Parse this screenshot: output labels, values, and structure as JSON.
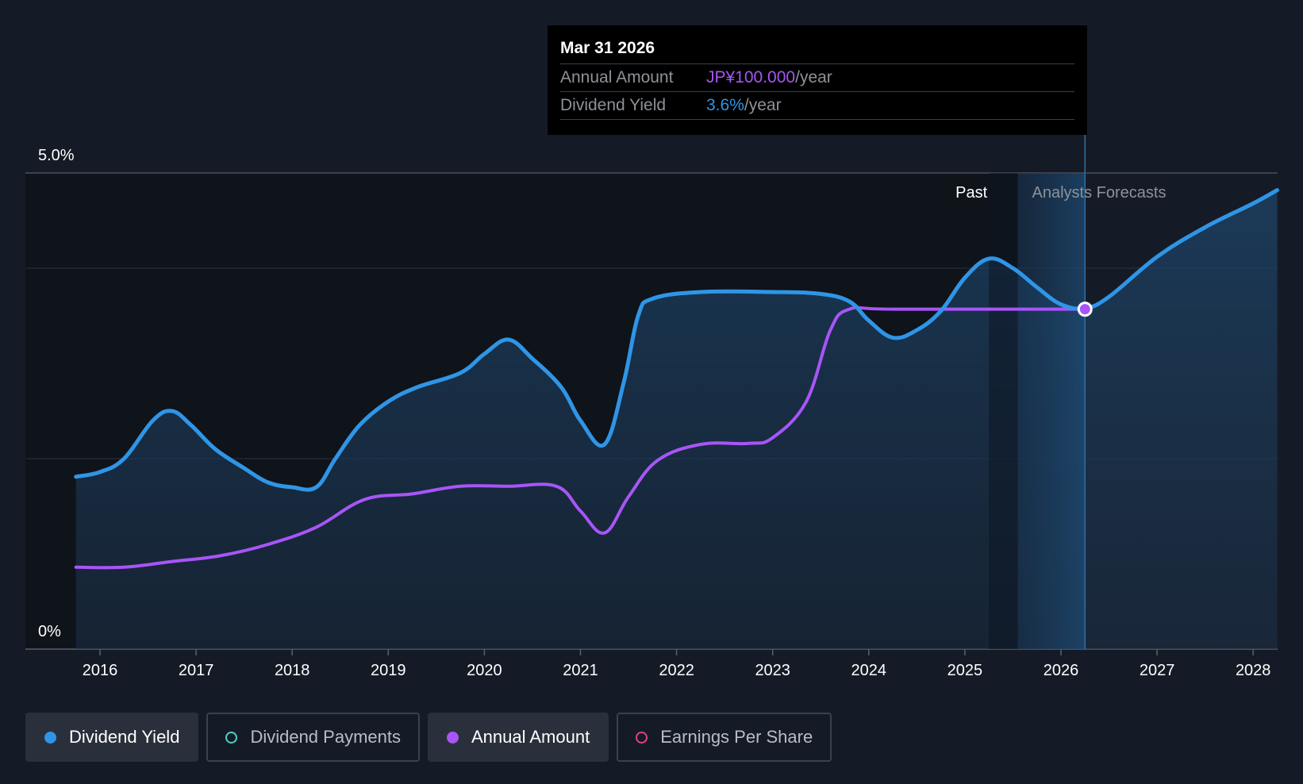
{
  "chart_data": {
    "type": "line",
    "y_axis": {
      "top_label": "5.0%",
      "bottom_label": "0%",
      "range": [
        0,
        5.0
      ]
    },
    "x_axis": {
      "tick_labels": [
        "2016",
        "2017",
        "2018",
        "2019",
        "2020",
        "2021",
        "2022",
        "2023",
        "2024",
        "2025",
        "2026",
        "2027",
        "2028"
      ],
      "range": [
        2015.75,
        2028.25
      ]
    },
    "regions": {
      "past_label": "Past",
      "forecast_label": "Analysts Forecasts",
      "past_end": 2025.25,
      "forecast_start": 2025.55,
      "marker_x": 2026.25
    },
    "series": [
      {
        "name": "Dividend Yield",
        "color": "#2f95e6",
        "points": [
          [
            2015.75,
            1.81
          ],
          [
            2016.0,
            1.86
          ],
          [
            2016.25,
            2.0
          ],
          [
            2016.55,
            2.4
          ],
          [
            2016.75,
            2.5
          ],
          [
            2016.95,
            2.35
          ],
          [
            2017.2,
            2.1
          ],
          [
            2017.5,
            1.9
          ],
          [
            2017.75,
            1.75
          ],
          [
            2018.0,
            1.7
          ],
          [
            2018.25,
            1.7
          ],
          [
            2018.45,
            2.0
          ],
          [
            2018.7,
            2.35
          ],
          [
            2019.0,
            2.6
          ],
          [
            2019.3,
            2.75
          ],
          [
            2019.75,
            2.9
          ],
          [
            2020.0,
            3.1
          ],
          [
            2020.25,
            3.25
          ],
          [
            2020.5,
            3.05
          ],
          [
            2020.8,
            2.75
          ],
          [
            2021.0,
            2.4
          ],
          [
            2021.25,
            2.15
          ],
          [
            2021.45,
            2.8
          ],
          [
            2021.6,
            3.5
          ],
          [
            2021.75,
            3.68
          ],
          [
            2022.25,
            3.75
          ],
          [
            2023.0,
            3.75
          ],
          [
            2023.5,
            3.73
          ],
          [
            2023.8,
            3.65
          ],
          [
            2024.0,
            3.45
          ],
          [
            2024.25,
            3.27
          ],
          [
            2024.5,
            3.35
          ],
          [
            2024.75,
            3.55
          ],
          [
            2025.0,
            3.9
          ],
          [
            2025.25,
            4.1
          ],
          [
            2025.5,
            4.0
          ],
          [
            2025.75,
            3.8
          ],
          [
            2026.0,
            3.62
          ],
          [
            2026.25,
            3.58
          ],
          [
            2026.5,
            3.7
          ],
          [
            2027.0,
            4.12
          ],
          [
            2027.5,
            4.43
          ],
          [
            2028.0,
            4.68
          ],
          [
            2028.25,
            4.82
          ]
        ]
      },
      {
        "name": "Annual Amount",
        "color": "#a855f7",
        "points": [
          [
            2015.75,
            0.86
          ],
          [
            2016.25,
            0.86
          ],
          [
            2016.75,
            0.92
          ],
          [
            2017.25,
            0.98
          ],
          [
            2017.75,
            1.1
          ],
          [
            2018.25,
            1.28
          ],
          [
            2018.75,
            1.57
          ],
          [
            2019.25,
            1.63
          ],
          [
            2019.75,
            1.71
          ],
          [
            2020.25,
            1.71
          ],
          [
            2020.75,
            1.71
          ],
          [
            2021.0,
            1.45
          ],
          [
            2021.25,
            1.22
          ],
          [
            2021.5,
            1.6
          ],
          [
            2021.8,
            1.98
          ],
          [
            2022.25,
            2.15
          ],
          [
            2022.75,
            2.16
          ],
          [
            2023.0,
            2.22
          ],
          [
            2023.35,
            2.6
          ],
          [
            2023.6,
            3.35
          ],
          [
            2023.8,
            3.57
          ],
          [
            2024.25,
            3.57
          ],
          [
            2026.25,
            3.57
          ]
        ]
      }
    ]
  },
  "tooltip": {
    "date": "Mar 31 2026",
    "annual_label": "Annual Amount",
    "annual_value": "JP¥100.000",
    "annual_unit": "/year",
    "yield_label": "Dividend Yield",
    "yield_value": "3.6%",
    "yield_unit": "/year"
  },
  "legend": [
    {
      "label": "Dividend Yield",
      "color": "#2f95e6",
      "active": true,
      "filled": true
    },
    {
      "label": "Dividend Payments",
      "color": "#4fd1c5",
      "active": false,
      "filled": false
    },
    {
      "label": "Annual Amount",
      "color": "#a855f7",
      "active": true,
      "filled": true
    },
    {
      "label": "Earnings Per Share",
      "color": "#e0457b",
      "active": false,
      "filled": false
    }
  ]
}
